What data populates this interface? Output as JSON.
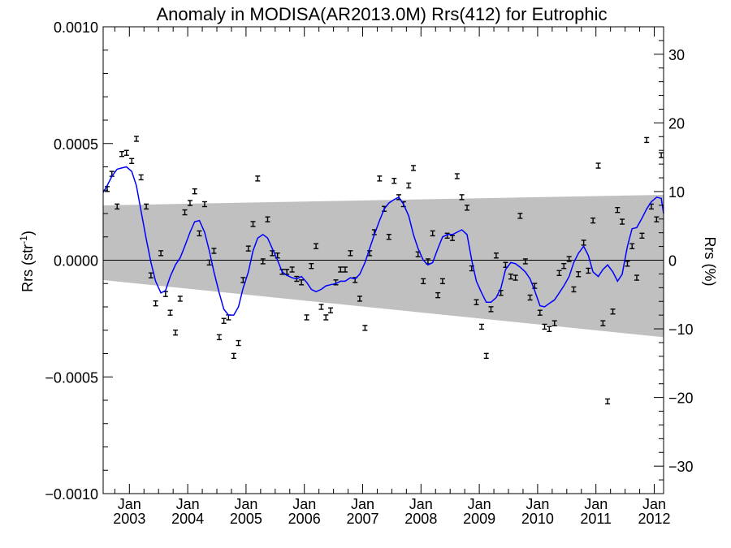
{
  "chart_data": {
    "type": "scatter",
    "title": "Anomaly in MODISA(AR2013.0M) Rrs(412) for Eutrophic",
    "ylabel_left": "Rrs (str",
    "ylabel_left_sup": "-1",
    "ylabel_left_close": ")",
    "ylabel_right": "Rrs (%)",
    "ylim_left": [
      -0.001,
      0.001
    ],
    "ylim_right": [
      -34,
      34
    ],
    "xlim": [
      2002.55,
      2012.16
    ],
    "yticks_left": [
      {
        "value": 0.001,
        "label": "0.0010"
      },
      {
        "value": 0.0005,
        "label": "0.0005"
      },
      {
        "value": 0.0,
        "label": "0.0000"
      },
      {
        "value": -0.0005,
        "label": "−0.0005"
      },
      {
        "value": -0.001,
        "label": "−0.0010"
      }
    ],
    "yticks_right": [
      {
        "value": 30,
        "label": "30"
      },
      {
        "value": 20,
        "label": "20"
      },
      {
        "value": 10,
        "label": "10"
      },
      {
        "value": 0,
        "label": "0"
      },
      {
        "value": -10,
        "label": "−10"
      },
      {
        "value": -20,
        "label": "−20"
      },
      {
        "value": -30,
        "label": "−30"
      }
    ],
    "xticks": [
      {
        "value": 2003.0,
        "month": "Jan",
        "year": "2003"
      },
      {
        "value": 2004.0,
        "month": "Jan",
        "year": "2004"
      },
      {
        "value": 2005.0,
        "month": "Jan",
        "year": "2005"
      },
      {
        "value": 2006.0,
        "month": "Jan",
        "year": "2006"
      },
      {
        "value": 2007.0,
        "month": "Jan",
        "year": "2007"
      },
      {
        "value": 2008.0,
        "month": "Jan",
        "year": "2008"
      },
      {
        "value": 2009.0,
        "month": "Jan",
        "year": "2009"
      },
      {
        "value": 2010.0,
        "month": "Jan",
        "year": "2010"
      },
      {
        "value": 2011.0,
        "month": "Jan",
        "year": "2011"
      },
      {
        "value": 2012.0,
        "month": "Jan",
        "year": "2012"
      }
    ],
    "zero_line": 0.0,
    "band": {
      "color": "#c0c0c0",
      "upper": [
        [
          2002.55,
          0.000235
        ],
        [
          2012.16,
          0.00028
        ]
      ],
      "lower": [
        [
          2002.55,
          -8.5e-05
        ],
        [
          2012.16,
          -0.00033
        ]
      ]
    },
    "series": [
      {
        "marker": "errorbar",
        "color": "#000000",
        "points": [
          [
            2002.62,
            0.000305
          ],
          [
            2002.7,
            0.00037
          ],
          [
            2002.79,
            0.00023
          ],
          [
            2002.87,
            0.000455
          ],
          [
            2002.95,
            0.00046
          ],
          [
            2003.04,
            0.000425
          ],
          [
            2003.12,
            0.00052
          ],
          [
            2003.2,
            0.000355
          ],
          [
            2003.29,
            0.00023
          ],
          [
            2003.37,
            -6.5e-05
          ],
          [
            2003.45,
            -0.000185
          ],
          [
            2003.54,
            3e-05
          ],
          [
            2003.62,
            -0.000145
          ],
          [
            2003.7,
            -0.000225
          ],
          [
            2003.79,
            -0.00031
          ],
          [
            2003.87,
            -0.000165
          ],
          [
            2003.95,
            0.000205
          ],
          [
            2004.04,
            0.000245
          ],
          [
            2004.12,
            0.000295
          ],
          [
            2004.2,
            0.000115
          ],
          [
            2004.29,
            0.00024
          ],
          [
            2004.37,
            -1e-05
          ],
          [
            2004.45,
            4e-05
          ],
          [
            2004.54,
            -0.00033
          ],
          [
            2004.62,
            -0.00026
          ],
          [
            2004.7,
            -0.000245
          ],
          [
            2004.79,
            -0.00041
          ],
          [
            2004.87,
            -0.000355
          ],
          [
            2004.95,
            -8.5e-05
          ],
          [
            2005.04,
            5e-05
          ],
          [
            2005.12,
            0.000155
          ],
          [
            2005.2,
            0.00035
          ],
          [
            2005.29,
            -5e-06
          ],
          [
            2005.37,
            0.000175
          ],
          [
            2005.45,
            3e-05
          ],
          [
            2005.54,
            2e-05
          ],
          [
            2005.62,
            -5e-05
          ],
          [
            2005.7,
            -5e-05
          ],
          [
            2005.79,
            -4e-05
          ],
          [
            2005.87,
            -8e-05
          ],
          [
            2005.95,
            -9.5e-05
          ],
          [
            2006.04,
            -0.000245
          ],
          [
            2006.12,
            -2.5e-05
          ],
          [
            2006.2,
            6e-05
          ],
          [
            2006.29,
            -0.0002
          ],
          [
            2006.37,
            -0.000245
          ],
          [
            2006.45,
            -0.000215
          ],
          [
            2006.54,
            -9.5e-05
          ],
          [
            2006.62,
            -4e-05
          ],
          [
            2006.7,
            -4e-05
          ],
          [
            2006.79,
            3e-05
          ],
          [
            2006.87,
            -8.5e-05
          ],
          [
            2006.95,
            -0.000165
          ],
          [
            2007.04,
            -0.00029
          ],
          [
            2007.12,
            3e-05
          ],
          [
            2007.2,
            0.00012
          ],
          [
            2007.29,
            0.00035
          ],
          [
            2007.37,
            0.00022
          ],
          [
            2007.45,
            0.0001
          ],
          [
            2007.54,
            0.00034
          ],
          [
            2007.62,
            0.00027
          ],
          [
            2007.7,
            0.00024
          ],
          [
            2007.79,
            0.00032
          ],
          [
            2007.87,
            0.000395
          ],
          [
            2007.95,
            2.5e-05
          ],
          [
            2008.04,
            -9e-05
          ],
          [
            2008.12,
            -5e-06
          ],
          [
            2008.2,
            0.000115
          ],
          [
            2008.29,
            -0.00015
          ],
          [
            2008.37,
            -9e-05
          ],
          [
            2008.45,
            0.000105
          ],
          [
            2008.54,
            9.5e-05
          ],
          [
            2008.62,
            0.00036
          ],
          [
            2008.7,
            0.00027
          ],
          [
            2008.79,
            0.000225
          ],
          [
            2008.87,
            -3.5e-05
          ],
          [
            2008.95,
            -0.00018
          ],
          [
            2009.04,
            -0.000285
          ],
          [
            2009.12,
            -0.00041
          ],
          [
            2009.2,
            -0.00021
          ],
          [
            2009.29,
            2e-05
          ],
          [
            2009.37,
            -0.00014
          ],
          [
            2009.45,
            -2e-05
          ],
          [
            2009.54,
            -7e-05
          ],
          [
            2009.62,
            -7.5e-05
          ],
          [
            2009.7,
            0.00019
          ],
          [
            2009.79,
            -5e-06
          ],
          [
            2009.87,
            -0.00016
          ],
          [
            2009.95,
            -0.00011
          ],
          [
            2010.04,
            -0.000225
          ],
          [
            2010.12,
            -0.000285
          ],
          [
            2010.2,
            -0.000295
          ],
          [
            2010.29,
            -0.00027
          ],
          [
            2010.37,
            -5.5e-05
          ],
          [
            2010.45,
            -2.5e-05
          ],
          [
            2010.54,
            5e-06
          ],
          [
            2010.62,
            -0.000125
          ],
          [
            2010.7,
            -6e-05
          ],
          [
            2010.79,
            7.5e-05
          ],
          [
            2010.87,
            -4.5e-05
          ],
          [
            2010.95,
            0.00017
          ],
          [
            2011.04,
            0.000405
          ],
          [
            2011.12,
            -0.00027
          ],
          [
            2011.2,
            -0.000605
          ],
          [
            2011.29,
            -0.00022
          ],
          [
            2011.37,
            0.000215
          ],
          [
            2011.45,
            0.000165
          ],
          [
            2011.54,
            -1.5e-05
          ],
          [
            2011.62,
            6e-05
          ],
          [
            2011.7,
            -7.5e-05
          ],
          [
            2011.79,
            0.000105
          ],
          [
            2011.87,
            0.000515
          ],
          [
            2011.95,
            0.00023
          ],
          [
            2012.04,
            0.000175
          ],
          [
            2012.12,
            0.00045
          ]
        ]
      },
      {
        "marker": "line",
        "color": "#0000ff",
        "points": [
          [
            2002.55,
            0.00029
          ],
          [
            2002.62,
            0.00032
          ],
          [
            2002.7,
            0.00036
          ],
          [
            2002.79,
            0.00039
          ],
          [
            2002.87,
            0.000395
          ],
          [
            2002.95,
            0.0004
          ],
          [
            2003.04,
            0.00038
          ],
          [
            2003.12,
            0.00032
          ],
          [
            2003.2,
            0.00021
          ],
          [
            2003.29,
            9e-05
          ],
          [
            2003.37,
            -1e-05
          ],
          [
            2003.45,
            -9e-05
          ],
          [
            2003.54,
            -0.00014
          ],
          [
            2003.62,
            -0.00013
          ],
          [
            2003.7,
            -7e-05
          ],
          [
            2003.79,
            -2e-05
          ],
          [
            2003.87,
            1e-05
          ],
          [
            2003.95,
            6e-05
          ],
          [
            2004.04,
            0.00012
          ],
          [
            2004.12,
            0.000165
          ],
          [
            2004.2,
            0.00017
          ],
          [
            2004.29,
            0.00012
          ],
          [
            2004.37,
            4e-05
          ],
          [
            2004.45,
            -5e-05
          ],
          [
            2004.54,
            -0.00014
          ],
          [
            2004.62,
            -0.00021
          ],
          [
            2004.7,
            -0.000235
          ],
          [
            2004.79,
            -0.000235
          ],
          [
            2004.87,
            -0.0002
          ],
          [
            2004.95,
            -0.00012
          ],
          [
            2005.04,
            -5e-05
          ],
          [
            2005.12,
            4e-05
          ],
          [
            2005.2,
            9.5e-05
          ],
          [
            2005.29,
            0.00011
          ],
          [
            2005.37,
            9.5e-05
          ],
          [
            2005.45,
            5e-05
          ],
          [
            2005.54,
            0.0
          ],
          [
            2005.62,
            -5e-05
          ],
          [
            2005.7,
            -6.5e-05
          ],
          [
            2005.79,
            -7.5e-05
          ],
          [
            2005.87,
            -8e-05
          ],
          [
            2005.95,
            -7e-05
          ],
          [
            2006.04,
            -9.5e-05
          ],
          [
            2006.12,
            -0.000125
          ],
          [
            2006.2,
            -0.000135
          ],
          [
            2006.29,
            -0.000125
          ],
          [
            2006.37,
            -0.00011
          ],
          [
            2006.45,
            -0.000105
          ],
          [
            2006.54,
            -0.0001
          ],
          [
            2006.62,
            -9e-05
          ],
          [
            2006.7,
            -9e-05
          ],
          [
            2006.79,
            -7.5e-05
          ],
          [
            2006.87,
            -8e-05
          ],
          [
            2006.95,
            -6e-05
          ],
          [
            2007.04,
            -1e-05
          ],
          [
            2007.12,
            5e-05
          ],
          [
            2007.2,
            0.00011
          ],
          [
            2007.29,
            0.00017
          ],
          [
            2007.37,
            0.00022
          ],
          [
            2007.45,
            0.000245
          ],
          [
            2007.54,
            0.00026
          ],
          [
            2007.62,
            0.00027
          ],
          [
            2007.7,
            0.00024
          ],
          [
            2007.79,
            0.00019
          ],
          [
            2007.87,
            0.00011
          ],
          [
            2007.95,
            5e-05
          ],
          [
            2008.04,
            0.0
          ],
          [
            2008.12,
            -2e-05
          ],
          [
            2008.2,
            -1e-05
          ],
          [
            2008.29,
            5e-05
          ],
          [
            2008.37,
            0.0001
          ],
          [
            2008.45,
            0.00011
          ],
          [
            2008.54,
            0.00011
          ],
          [
            2008.62,
            0.00012
          ],
          [
            2008.7,
            0.00013
          ],
          [
            2008.79,
            0.00011
          ],
          [
            2008.87,
            0.0
          ],
          [
            2008.95,
            -9e-05
          ],
          [
            2009.04,
            -0.00014
          ],
          [
            2009.12,
            -0.00018
          ],
          [
            2009.2,
            -0.00018
          ],
          [
            2009.29,
            -0.00016
          ],
          [
            2009.37,
            -0.00012
          ],
          [
            2009.45,
            -4e-05
          ],
          [
            2009.54,
            -1e-05
          ],
          [
            2009.62,
            -1.5e-05
          ],
          [
            2009.7,
            -3e-05
          ],
          [
            2009.79,
            -5e-05
          ],
          [
            2009.87,
            -8e-05
          ],
          [
            2009.95,
            -0.00013
          ],
          [
            2010.04,
            -0.000195
          ],
          [
            2010.12,
            -0.0002
          ],
          [
            2010.2,
            -0.000185
          ],
          [
            2010.29,
            -0.00017
          ],
          [
            2010.37,
            -0.00014
          ],
          [
            2010.45,
            -0.00011
          ],
          [
            2010.54,
            -7e-05
          ],
          [
            2010.62,
            -1e-05
          ],
          [
            2010.7,
            3e-05
          ],
          [
            2010.79,
            6e-05
          ],
          [
            2010.87,
            2e-05
          ],
          [
            2010.95,
            -5e-05
          ],
          [
            2011.04,
            -7e-05
          ],
          [
            2011.12,
            -4e-05
          ],
          [
            2011.2,
            -2e-05
          ],
          [
            2011.29,
            -5e-05
          ],
          [
            2011.37,
            -9e-05
          ],
          [
            2011.45,
            -6e-05
          ],
          [
            2011.54,
            6e-05
          ],
          [
            2011.62,
            0.000135
          ],
          [
            2011.7,
            0.00014
          ],
          [
            2011.79,
            0.00018
          ],
          [
            2011.87,
            0.00022
          ],
          [
            2011.95,
            0.00025
          ],
          [
            2012.04,
            0.00027
          ],
          [
            2012.12,
            0.000265
          ],
          [
            2012.16,
            0.0002
          ]
        ]
      }
    ]
  }
}
